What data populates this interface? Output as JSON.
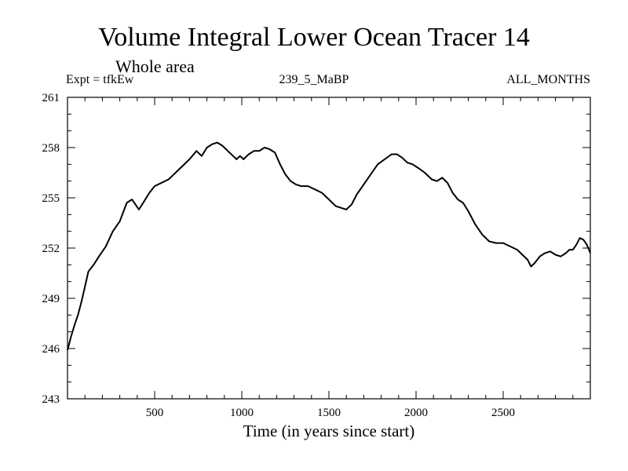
{
  "header": {
    "title": "Volume Integral Lower Ocean Tracer 14",
    "subtitle": "Whole area",
    "left_label": "Expt = tfkEw",
    "center_label": "239_5_MaBP",
    "right_label": "ALL_MONTHS"
  },
  "chart_data": {
    "type": "line",
    "title": "Volume Integral Lower Ocean Tracer 14",
    "xlabel": "Time (in years since start)",
    "ylabel": "",
    "xlim": [
      0,
      3000
    ],
    "ylim": [
      243,
      261
    ],
    "xticks": [
      500,
      1000,
      1500,
      2000,
      2500
    ],
    "yticks": [
      243,
      246,
      249,
      252,
      255,
      258,
      261
    ],
    "grid": false,
    "series": [
      {
        "x": [
          0,
          20,
          40,
          60,
          80,
          100,
          120,
          150,
          180,
          220,
          260,
          300,
          340,
          370,
          390,
          410,
          440,
          470,
          500,
          540,
          580,
          620,
          660,
          700,
          740,
          770,
          800,
          830,
          860,
          890,
          920,
          950,
          970,
          990,
          1010,
          1040,
          1070,
          1100,
          1130,
          1160,
          1190,
          1220,
          1250,
          1280,
          1310,
          1340,
          1380,
          1420,
          1460,
          1500,
          1540,
          1570,
          1600,
          1630,
          1660,
          1700,
          1740,
          1780,
          1820,
          1860,
          1890,
          1920,
          1950,
          1980,
          2010,
          2050,
          2090,
          2120,
          2150,
          2180,
          2210,
          2240,
          2270,
          2300,
          2340,
          2380,
          2420,
          2460,
          2500,
          2540,
          2580,
          2610,
          2640,
          2660,
          2680,
          2710,
          2740,
          2770,
          2800,
          2830,
          2860,
          2880,
          2900,
          2920,
          2940,
          2960,
          2980,
          3000
        ],
        "y": [
          245.9,
          246.7,
          247.4,
          248.0,
          248.8,
          249.7,
          250.6,
          251.0,
          251.5,
          252.1,
          253.0,
          253.6,
          254.7,
          254.9,
          254.6,
          254.3,
          254.8,
          255.3,
          255.7,
          255.9,
          256.1,
          256.5,
          256.9,
          257.3,
          257.8,
          257.5,
          258.0,
          258.2,
          258.3,
          258.1,
          257.8,
          257.5,
          257.3,
          257.5,
          257.3,
          257.6,
          257.8,
          257.8,
          258.0,
          257.9,
          257.7,
          257.0,
          256.4,
          256.0,
          255.8,
          255.7,
          255.7,
          255.5,
          255.3,
          254.9,
          254.5,
          254.4,
          254.3,
          254.6,
          255.2,
          255.8,
          256.4,
          257.0,
          257.3,
          257.6,
          257.6,
          257.4,
          257.1,
          257.0,
          256.8,
          256.5,
          256.1,
          256.0,
          256.2,
          255.9,
          255.3,
          254.9,
          254.7,
          254.2,
          253.4,
          252.8,
          252.4,
          252.3,
          252.3,
          252.1,
          251.9,
          251.6,
          251.3,
          250.9,
          251.1,
          251.5,
          251.7,
          251.8,
          251.6,
          251.5,
          251.7,
          251.9,
          251.9,
          252.2,
          252.6,
          252.5,
          252.2,
          251.7
        ]
      }
    ]
  }
}
